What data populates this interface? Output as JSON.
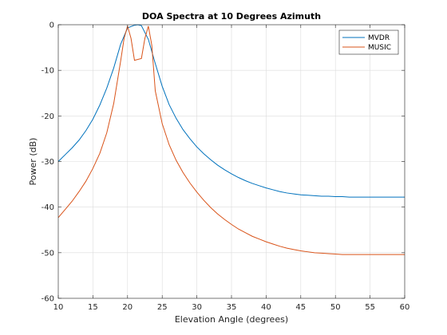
{
  "chart_data": {
    "type": "line",
    "title": "DOA Spectra at 10 Degrees Azimuth",
    "xlabel": "Elevation Angle (degrees)",
    "ylabel": "Power (dB)",
    "xlim": [
      10,
      60
    ],
    "ylim": [
      -60,
      0
    ],
    "xticks": [
      10,
      15,
      20,
      25,
      30,
      35,
      40,
      45,
      50,
      55,
      60
    ],
    "yticks": [
      0,
      -10,
      -20,
      -30,
      -40,
      -50,
      -60
    ],
    "grid": true,
    "legend_position": "top-right",
    "series": [
      {
        "name": "MVDR",
        "color": "#0072BD",
        "x": [
          10,
          11,
          12,
          13,
          14,
          15,
          16,
          17,
          18,
          19,
          20,
          21,
          21.5,
          22,
          23,
          24,
          25,
          26,
          27,
          28,
          29,
          30,
          31,
          32,
          33,
          34,
          35,
          36,
          37,
          38,
          39,
          40,
          41,
          42,
          43,
          44,
          45,
          46,
          47,
          48,
          49,
          50,
          51,
          52,
          53,
          54,
          55,
          56,
          57,
          58,
          59,
          60
        ],
        "y": [
          -30,
          -28.5,
          -27,
          -25.3,
          -23.2,
          -20.7,
          -17.6,
          -13.9,
          -9.5,
          -4.3,
          -0.7,
          -0.1,
          0,
          -0.2,
          -3.2,
          -8.5,
          -13.5,
          -17.5,
          -20.5,
          -23,
          -25,
          -26.8,
          -28.3,
          -29.6,
          -30.8,
          -31.8,
          -32.7,
          -33.5,
          -34.2,
          -34.8,
          -35.3,
          -35.8,
          -36.2,
          -36.6,
          -36.9,
          -37.1,
          -37.3,
          -37.4,
          -37.5,
          -37.6,
          -37.6,
          -37.7,
          -37.7,
          -37.8,
          -37.8,
          -37.8,
          -37.8,
          -37.8,
          -37.8,
          -37.8,
          -37.8,
          -37.8
        ]
      },
      {
        "name": "MUSIC",
        "color": "#D95319",
        "x": [
          10,
          11,
          12,
          13,
          14,
          15,
          16,
          17,
          18,
          19,
          19.5,
          20,
          20.5,
          21,
          22,
          22.5,
          23,
          23.5,
          24,
          25,
          26,
          27,
          28,
          29,
          30,
          31,
          32,
          33,
          34,
          35,
          36,
          37,
          38,
          39,
          40,
          41,
          42,
          43,
          44,
          45,
          46,
          47,
          48,
          49,
          50,
          51,
          52,
          53,
          54,
          55,
          56,
          57,
          58,
          59,
          60
        ],
        "y": [
          -42.3,
          -40.5,
          -38.7,
          -36.6,
          -34.3,
          -31.5,
          -28.2,
          -23.7,
          -17.3,
          -8,
          -3,
          -0.3,
          -3,
          -7.8,
          -7.4,
          -3,
          -0.3,
          -4.5,
          -14.5,
          -21.7,
          -26.3,
          -29.7,
          -32.4,
          -34.7,
          -36.7,
          -38.5,
          -40.1,
          -41.5,
          -42.7,
          -43.8,
          -44.8,
          -45.6,
          -46.4,
          -47,
          -47.6,
          -48.1,
          -48.6,
          -49,
          -49.3,
          -49.6,
          -49.8,
          -50,
          -50.1,
          -50.2,
          -50.3,
          -50.4,
          -50.4,
          -50.4,
          -50.4,
          -50.4,
          -50.4,
          -50.4,
          -50.4,
          -50.4,
          -50.4
        ]
      }
    ]
  }
}
